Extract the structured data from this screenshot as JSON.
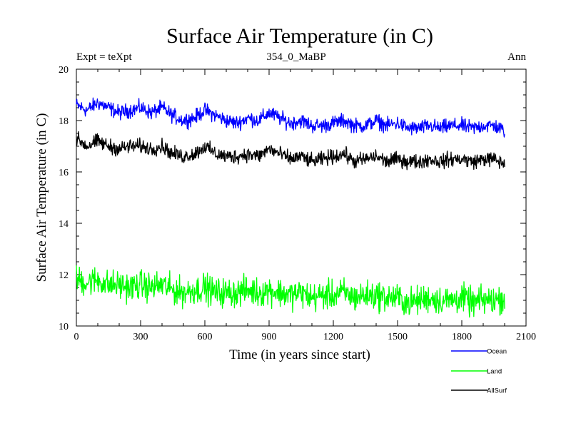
{
  "chart_data": {
    "type": "line",
    "title": "Surface Air Temperature (in C)",
    "subtitle": "354_0_MaBP",
    "left_note": "Expt = teXpt",
    "right_note": "Ann",
    "xlabel": "Time (in years since start)",
    "ylabel": "Surface Air Temperature (in C)",
    "xlim": [
      0,
      2100
    ],
    "ylim": [
      10,
      20
    ],
    "x_ticks": [
      0,
      300,
      600,
      900,
      1200,
      1500,
      1800,
      2100
    ],
    "y_ticks": [
      10,
      12,
      14,
      16,
      18,
      20
    ],
    "grid": false,
    "legend_position": "bottom-right, below plot",
    "series": [
      {
        "name": "Ocean",
        "color": "#0000ff",
        "x": [
          0,
          50,
          100,
          150,
          200,
          250,
          300,
          350,
          400,
          450,
          500,
          550,
          600,
          650,
          700,
          750,
          800,
          850,
          900,
          950,
          1000,
          1050,
          1100,
          1150,
          1200,
          1250,
          1300,
          1350,
          1400,
          1450,
          1500,
          1550,
          1600,
          1650,
          1700,
          1750,
          1800,
          1850,
          1900,
          1950,
          2000
        ],
        "values": [
          18.6,
          18.4,
          18.7,
          18.5,
          18.3,
          18.4,
          18.5,
          18.3,
          18.5,
          18.2,
          18.0,
          18.1,
          18.4,
          18.2,
          18.0,
          17.9,
          18.1,
          18.0,
          18.3,
          18.1,
          17.9,
          18.0,
          17.8,
          17.8,
          17.9,
          18.0,
          17.8,
          17.8,
          18.0,
          17.8,
          17.9,
          17.7,
          17.7,
          17.8,
          17.7,
          17.8,
          17.8,
          17.7,
          17.8,
          17.8,
          17.6
        ]
      },
      {
        "name": "Land",
        "color": "#00ff00",
        "x": [
          0,
          50,
          100,
          150,
          200,
          250,
          300,
          350,
          400,
          450,
          500,
          550,
          600,
          650,
          700,
          750,
          800,
          850,
          900,
          950,
          1000,
          1050,
          1100,
          1150,
          1200,
          1250,
          1300,
          1350,
          1400,
          1450,
          1500,
          1550,
          1600,
          1650,
          1700,
          1750,
          1800,
          1850,
          1900,
          1950,
          2000
        ],
        "values": [
          11.8,
          11.7,
          11.8,
          11.6,
          11.6,
          11.5,
          11.6,
          11.5,
          11.6,
          11.4,
          11.3,
          11.4,
          11.5,
          11.3,
          11.3,
          11.3,
          11.4,
          11.3,
          11.4,
          11.3,
          11.2,
          11.3,
          11.1,
          11.2,
          11.2,
          11.3,
          11.1,
          11.2,
          11.2,
          11.1,
          11.1,
          10.9,
          11.0,
          11.1,
          11.0,
          11.0,
          11.1,
          10.9,
          11.0,
          11.0,
          11.1
        ]
      },
      {
        "name": "AllSurf",
        "color": "#000000",
        "x": [
          0,
          50,
          100,
          150,
          200,
          250,
          300,
          350,
          400,
          450,
          500,
          550,
          600,
          650,
          700,
          750,
          800,
          850,
          900,
          950,
          1000,
          1050,
          1100,
          1150,
          1200,
          1250,
          1300,
          1350,
          1400,
          1450,
          1500,
          1550,
          1600,
          1650,
          1700,
          1750,
          1800,
          1850,
          1900,
          1950,
          2000
        ],
        "values": [
          17.3,
          17.0,
          17.2,
          17.0,
          16.9,
          17.0,
          17.0,
          16.9,
          17.0,
          16.7,
          16.6,
          16.7,
          17.0,
          16.7,
          16.6,
          16.6,
          16.7,
          16.6,
          16.9,
          16.7,
          16.5,
          16.6,
          16.4,
          16.5,
          16.6,
          16.7,
          16.4,
          16.5,
          16.6,
          16.4,
          16.5,
          16.4,
          16.4,
          16.5,
          16.4,
          16.5,
          16.5,
          16.4,
          16.5,
          16.5,
          16.3
        ]
      }
    ]
  }
}
